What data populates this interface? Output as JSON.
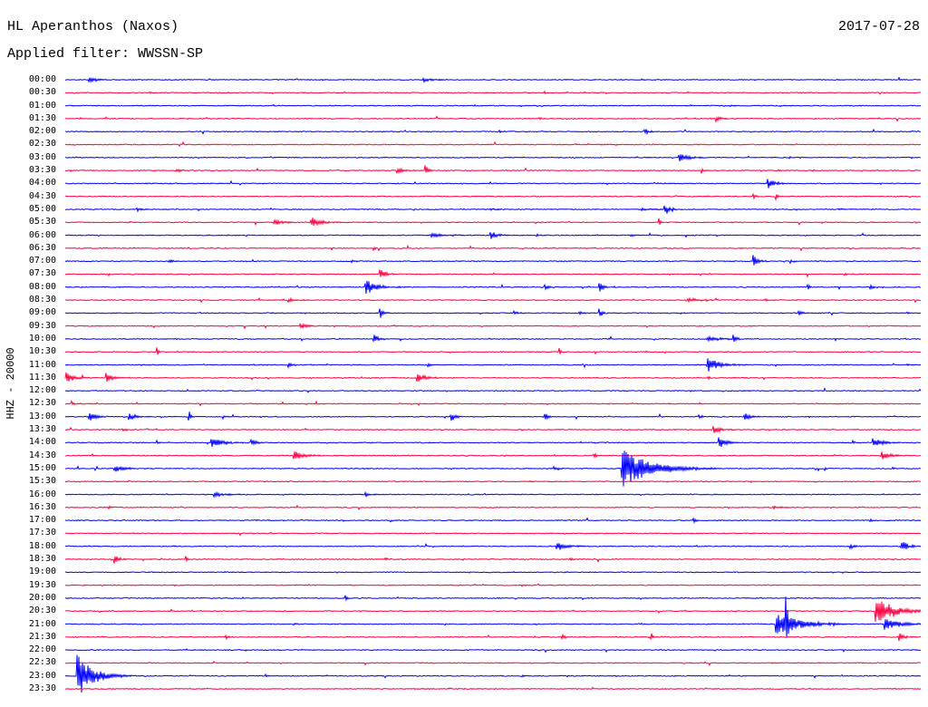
{
  "chart_data": {
    "type": "line",
    "title": "HL Aperanthos (Naxos)",
    "date": "2017-07-28",
    "subtitle": "Applied filter: WWSSN-SP",
    "ylabel": "HHZ - 20000",
    "xlim": [
      0,
      30
    ],
    "grid": false,
    "noise_amp": 600,
    "series": [
      {
        "label": "00:00",
        "color": "#0000ff",
        "events": [
          {
            "t": 0.8,
            "amp": 4200,
            "dur": 0.8
          },
          {
            "t": 12.5,
            "amp": 4200,
            "dur": 0.8
          }
        ]
      },
      {
        "label": "00:30",
        "color": "#ff0040",
        "events": [
          {
            "t": 2.95,
            "amp": 2500,
            "dur": 0.1
          },
          {
            "t": 16.8,
            "amp": 2800,
            "dur": 0.15
          },
          {
            "t": 18.2,
            "amp": 2200,
            "dur": 0.1
          }
        ]
      },
      {
        "label": "01:00",
        "color": "#0000ff",
        "events": [
          {
            "t": 23.3,
            "amp": 2500,
            "dur": 0.2
          }
        ]
      },
      {
        "label": "01:30",
        "color": "#ff0040",
        "events": [
          {
            "t": 16.6,
            "amp": 3500,
            "dur": 0.2
          },
          {
            "t": 22.8,
            "amp": 4800,
            "dur": 0.6
          }
        ]
      },
      {
        "label": "02:00",
        "color": "#0000ff",
        "events": [
          {
            "t": 15.2,
            "amp": 2800,
            "dur": 0.4
          },
          {
            "t": 20.3,
            "amp": 7000,
            "dur": 0.3
          }
        ]
      },
      {
        "label": "02:30",
        "color": "#ff0040",
        "events": [
          {
            "t": 10.3,
            "amp": 2000,
            "dur": 0.15
          }
        ]
      },
      {
        "label": "03:00",
        "color": "#0000ff",
        "events": [
          {
            "t": 21.5,
            "amp": 7000,
            "dur": 0.8
          }
        ]
      },
      {
        "label": "03:30",
        "color": "#ff0040",
        "events": [
          {
            "t": 3.9,
            "amp": 3500,
            "dur": 0.5
          },
          {
            "t": 11.6,
            "amp": 5000,
            "dur": 0.6
          },
          {
            "t": 12.6,
            "amp": 8400,
            "dur": 0.4
          },
          {
            "t": 22.3,
            "amp": 8400,
            "dur": 0.15
          },
          {
            "t": 25.0,
            "amp": 3500,
            "dur": 0.2
          }
        ]
      },
      {
        "label": "04:00",
        "color": "#0000ff",
        "events": [
          {
            "t": 24.6,
            "amp": 10500,
            "dur": 0.6
          }
        ]
      },
      {
        "label": "04:30",
        "color": "#ff0040",
        "events": [
          {
            "t": 24.1,
            "amp": 5600,
            "dur": 0.2
          },
          {
            "t": 24.9,
            "amp": 9800,
            "dur": 0.15
          }
        ]
      },
      {
        "label": "05:00",
        "color": "#0000ff",
        "events": [
          {
            "t": 2.5,
            "amp": 3500,
            "dur": 0.6
          },
          {
            "t": 14.9,
            "amp": 2800,
            "dur": 0.4
          },
          {
            "t": 20.2,
            "amp": 3500,
            "dur": 0.5
          },
          {
            "t": 21.0,
            "amp": 11000,
            "dur": 0.5
          },
          {
            "t": 27.1,
            "amp": 3500,
            "dur": 0.4
          }
        ]
      },
      {
        "label": "05:30",
        "color": "#ff0040",
        "events": [
          {
            "t": 7.3,
            "amp": 4900,
            "dur": 0.9
          },
          {
            "t": 8.6,
            "amp": 8400,
            "dur": 0.8
          },
          {
            "t": 20.8,
            "amp": 8400,
            "dur": 0.2
          }
        ]
      },
      {
        "label": "06:00",
        "color": "#0000ff",
        "events": [
          {
            "t": 12.8,
            "amp": 3500,
            "dur": 1.3
          },
          {
            "t": 14.9,
            "amp": 8400,
            "dur": 0.5
          },
          {
            "t": 16.5,
            "amp": 2800,
            "dur": 0.3
          },
          {
            "t": 19.8,
            "amp": 3500,
            "dur": 0.3
          }
        ]
      },
      {
        "label": "06:30",
        "color": "#ff0040",
        "events": [
          {
            "t": 10.8,
            "amp": 9800,
            "dur": 0.1
          },
          {
            "t": 17.1,
            "amp": 2200,
            "dur": 0.1
          }
        ]
      },
      {
        "label": "07:00",
        "color": "#0000ff",
        "events": [
          {
            "t": 3.6,
            "amp": 3500,
            "dur": 0.4
          },
          {
            "t": 10.0,
            "amp": 2800,
            "dur": 0.3
          },
          {
            "t": 24.1,
            "amp": 14000,
            "dur": 0.4
          },
          {
            "t": 25.4,
            "amp": 3500,
            "dur": 0.3
          }
        ]
      },
      {
        "label": "07:30",
        "color": "#ff0040",
        "events": [
          {
            "t": 1.5,
            "amp": 5600,
            "dur": 0.1
          },
          {
            "t": 11.0,
            "amp": 9800,
            "dur": 0.5
          },
          {
            "t": 15.0,
            "amp": 4900,
            "dur": 0.1
          },
          {
            "t": 27.3,
            "amp": 3500,
            "dur": 0.2
          }
        ]
      },
      {
        "label": "08:00",
        "color": "#0000ff",
        "events": [
          {
            "t": 10.5,
            "amp": 13000,
            "dur": 1.0
          },
          {
            "t": 16.8,
            "amp": 4200,
            "dur": 0.3
          },
          {
            "t": 18.7,
            "amp": 11000,
            "dur": 0.3
          },
          {
            "t": 26.0,
            "amp": 7000,
            "dur": 0.2
          },
          {
            "t": 28.2,
            "amp": 4900,
            "dur": 0.2
          }
        ]
      },
      {
        "label": "08:30",
        "color": "#ff0040",
        "events": [
          {
            "t": 7.8,
            "amp": 3500,
            "dur": 0.6
          },
          {
            "t": 21.8,
            "amp": 4200,
            "dur": 1.0
          },
          {
            "t": 24.5,
            "amp": 3500,
            "dur": 0.4
          }
        ]
      },
      {
        "label": "09:00",
        "color": "#0000ff",
        "events": [
          {
            "t": 11.0,
            "amp": 12500,
            "dur": 0.3
          },
          {
            "t": 15.7,
            "amp": 4900,
            "dur": 0.4
          },
          {
            "t": 18.0,
            "amp": 3500,
            "dur": 0.3
          },
          {
            "t": 18.7,
            "amp": 11000,
            "dur": 0.3
          },
          {
            "t": 25.7,
            "amp": 4900,
            "dur": 0.3
          },
          {
            "t": 29.5,
            "amp": 3500,
            "dur": 0.2
          }
        ]
      },
      {
        "label": "09:30",
        "color": "#ff0040",
        "events": [
          {
            "t": 8.2,
            "amp": 4200,
            "dur": 0.8
          }
        ]
      },
      {
        "label": "10:00",
        "color": "#0000ff",
        "events": [
          {
            "t": 10.8,
            "amp": 10500,
            "dur": 0.4
          },
          {
            "t": 22.5,
            "amp": 4900,
            "dur": 1.0
          },
          {
            "t": 23.4,
            "amp": 7000,
            "dur": 0.3
          }
        ]
      },
      {
        "label": "10:30",
        "color": "#ff0040",
        "events": [
          {
            "t": 3.2,
            "amp": 9800,
            "dur": 0.15
          },
          {
            "t": 17.3,
            "amp": 9800,
            "dur": 0.2
          }
        ]
      },
      {
        "label": "11:00",
        "color": "#0000ff",
        "events": [
          {
            "t": 7.8,
            "amp": 7000,
            "dur": 0.3
          },
          {
            "t": 12.7,
            "amp": 3500,
            "dur": 0.3
          },
          {
            "t": 22.5,
            "amp": 12500,
            "dur": 1.0
          },
          {
            "t": 24.9,
            "amp": 4200,
            "dur": 0.2
          },
          {
            "t": 29.5,
            "amp": 3500,
            "dur": 0.2
          }
        ]
      },
      {
        "label": "11:30",
        "color": "#ff0040",
        "events": [
          {
            "t": 0.0,
            "amp": 11000,
            "dur": 0.6
          },
          {
            "t": 1.4,
            "amp": 8500,
            "dur": 0.6
          },
          {
            "t": 12.3,
            "amp": 9000,
            "dur": 0.7
          },
          {
            "t": 22.5,
            "amp": 2800,
            "dur": 0.3
          }
        ]
      },
      {
        "label": "12:00",
        "color": "#0000ff",
        "events": [
          {
            "t": 8.5,
            "amp": 2800,
            "dur": 0.1
          },
          {
            "t": 21.9,
            "amp": 2200,
            "dur": 0.2
          },
          {
            "t": 29.95,
            "amp": 8400,
            "dur": 0.05
          }
        ]
      },
      {
        "label": "12:30",
        "color": "#ff0040",
        "events": [
          {
            "t": 0.2,
            "amp": 7000,
            "dur": 0.15
          },
          {
            "t": 2.5,
            "amp": 4200,
            "dur": 0.1
          },
          {
            "t": 11.7,
            "amp": 2800,
            "dur": 0.1
          }
        ]
      },
      {
        "label": "13:00",
        "color": "#0000ff",
        "events": [
          {
            "t": 0.8,
            "amp": 8400,
            "dur": 0.6
          },
          {
            "t": 2.2,
            "amp": 8400,
            "dur": 0.5
          },
          {
            "t": 4.3,
            "amp": 19000,
            "dur": 0.15
          },
          {
            "t": 5.5,
            "amp": 4900,
            "dur": 0.2
          },
          {
            "t": 13.5,
            "amp": 8400,
            "dur": 0.4
          },
          {
            "t": 16.8,
            "amp": 8400,
            "dur": 0.3
          },
          {
            "t": 22.2,
            "amp": 4200,
            "dur": 0.3
          },
          {
            "t": 23.8,
            "amp": 8400,
            "dur": 0.5
          }
        ]
      },
      {
        "label": "13:30",
        "color": "#ff0040",
        "events": [
          {
            "t": 2.0,
            "amp": 4200,
            "dur": 0.3
          },
          {
            "t": 22.7,
            "amp": 7000,
            "dur": 0.6
          }
        ]
      },
      {
        "label": "14:00",
        "color": "#0000ff",
        "events": [
          {
            "t": 3.2,
            "amp": 5600,
            "dur": 0.1
          },
          {
            "t": 5.1,
            "amp": 8400,
            "dur": 1.0
          },
          {
            "t": 6.5,
            "amp": 5600,
            "dur": 0.5
          },
          {
            "t": 22.9,
            "amp": 14000,
            "dur": 0.5
          },
          {
            "t": 27.6,
            "amp": 6300,
            "dur": 0.2
          },
          {
            "t": 28.3,
            "amp": 8400,
            "dur": 0.8
          }
        ]
      },
      {
        "label": "14:30",
        "color": "#ff0040",
        "events": [
          {
            "t": 8.0,
            "amp": 9000,
            "dur": 0.8
          },
          {
            "t": 18.5,
            "amp": 4900,
            "dur": 0.3
          },
          {
            "t": 28.6,
            "amp": 7700,
            "dur": 0.7
          }
        ]
      },
      {
        "label": "15:00",
        "color": "#0000ff",
        "events": [
          {
            "t": 1.7,
            "amp": 6300,
            "dur": 0.9
          },
          {
            "t": 17.1,
            "amp": 4200,
            "dur": 0.4
          },
          {
            "t": 19.5,
            "amp": 31000,
            "dur": 2.4
          },
          {
            "t": 26.6,
            "amp": 4900,
            "dur": 0.2
          },
          {
            "t": 29.0,
            "amp": 5600,
            "dur": 0.1
          }
        ]
      },
      {
        "label": "15:30",
        "color": "#ff0040",
        "events": [
          {
            "t": 16.3,
            "amp": 2200,
            "dur": 0.2
          }
        ]
      },
      {
        "label": "16:00",
        "color": "#0000ff",
        "events": [
          {
            "t": 5.2,
            "amp": 4200,
            "dur": 1.0
          },
          {
            "t": 10.5,
            "amp": 5600,
            "dur": 0.3
          }
        ]
      },
      {
        "label": "16:30",
        "color": "#ff0040",
        "events": [
          {
            "t": 1.5,
            "amp": 3500,
            "dur": 0.2
          },
          {
            "t": 24.8,
            "amp": 2800,
            "dur": 0.6
          }
        ]
      },
      {
        "label": "17:00",
        "color": "#0000ff",
        "events": [
          {
            "t": 22.0,
            "amp": 5600,
            "dur": 0.3
          },
          {
            "t": 28.2,
            "amp": 3500,
            "dur": 0.2
          }
        ]
      },
      {
        "label": "17:30",
        "color": "#ff0040",
        "events": [
          {
            "t": 7.2,
            "amp": 2200,
            "dur": 0.2
          }
        ]
      },
      {
        "label": "18:00",
        "color": "#0000ff",
        "events": [
          {
            "t": 17.2,
            "amp": 7000,
            "dur": 1.0
          },
          {
            "t": 27.5,
            "amp": 4900,
            "dur": 0.5
          },
          {
            "t": 29.3,
            "amp": 11000,
            "dur": 0.6
          }
        ]
      },
      {
        "label": "18:30",
        "color": "#ff0040",
        "events": [
          {
            "t": 1.7,
            "amp": 8500,
            "dur": 0.4
          },
          {
            "t": 4.2,
            "amp": 12000,
            "dur": 0.15
          },
          {
            "t": 11.2,
            "amp": 3500,
            "dur": 0.2
          },
          {
            "t": 17.7,
            "amp": 4200,
            "dur": 0.3
          }
        ]
      },
      {
        "label": "19:00",
        "color": "#0000ff",
        "events": [
          {
            "t": 15.7,
            "amp": 2200,
            "dur": 0.2
          }
        ]
      },
      {
        "label": "19:30",
        "color": "#ff0040",
        "events": [
          {
            "t": 16.0,
            "amp": 2200,
            "dur": 0.3
          }
        ]
      },
      {
        "label": "20:00",
        "color": "#0000ff",
        "events": [
          {
            "t": 9.8,
            "amp": 5600,
            "dur": 0.2
          }
        ]
      },
      {
        "label": "20:30",
        "color": "#ff0040",
        "events": [
          {
            "t": 28.4,
            "amp": 24000,
            "dur": 1.5
          }
        ]
      },
      {
        "label": "21:00",
        "color": "#0000ff",
        "events": [
          {
            "t": 8.0,
            "amp": 2800,
            "dur": 0.2
          },
          {
            "t": 24.9,
            "amp": 20000,
            "dur": 1.9
          },
          {
            "t": 25.25,
            "amp": 55000,
            "dur": 0.15
          },
          {
            "t": 28.7,
            "amp": 10000,
            "dur": 1.4
          }
        ]
      },
      {
        "label": "21:30",
        "color": "#ff0040",
        "events": [
          {
            "t": 5.6,
            "amp": 4900,
            "dur": 0.3
          },
          {
            "t": 17.4,
            "amp": 6300,
            "dur": 0.3
          },
          {
            "t": 20.5,
            "amp": 4900,
            "dur": 0.3
          },
          {
            "t": 29.2,
            "amp": 8500,
            "dur": 0.5
          }
        ]
      },
      {
        "label": "22:00",
        "color": "#0000ff",
        "events": []
      },
      {
        "label": "22:30",
        "color": "#ff0040",
        "events": [
          {
            "t": 16.3,
            "amp": 2200,
            "dur": 0.2
          }
        ]
      },
      {
        "label": "23:00",
        "color": "#0000ff",
        "events": [
          {
            "t": 0.4,
            "amp": 39000,
            "dur": 1.3
          },
          {
            "t": 7.0,
            "amp": 2800,
            "dur": 0.2
          },
          {
            "t": 16.0,
            "amp": 2500,
            "dur": 0.2
          }
        ]
      },
      {
        "label": "23:30",
        "color": "#ff0040",
        "events": []
      }
    ]
  }
}
